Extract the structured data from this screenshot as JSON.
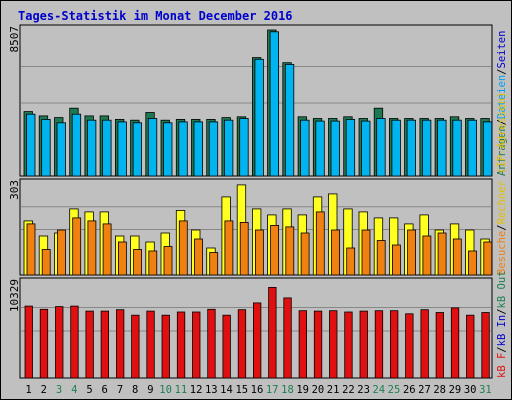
{
  "title": "Tages-Statistik im Monat December 2016",
  "colors": {
    "background": "#C0C0C0",
    "frame": "#000000",
    "title_text": "#0000CC",
    "grid": "#888888",
    "anfragen": "#1E7850",
    "dateien": "#00B4F0",
    "rechner": "#FFFF20",
    "besuche": "#F08010",
    "kbf": "#E01010",
    "weekday_label": "#000000",
    "weekend_label": "#1E8050"
  },
  "panels": {
    "top": {
      "max_label": "8507"
    },
    "mid": {
      "max_label": "303"
    },
    "bottom": {
      "max_label": "10329"
    }
  },
  "right_legend": {
    "top": [
      {
        "text": "Anfragen",
        "color": "#1E7850"
      },
      {
        "text": "/",
        "color": "#000000"
      },
      {
        "text": "Dateien",
        "color": "#00A0F0"
      },
      {
        "text": "/",
        "color": "#000000"
      },
      {
        "text": "Seiten",
        "color": "#0000CC"
      }
    ],
    "mid": [
      {
        "text": "Besuche",
        "color": "#F08010"
      },
      {
        "text": "/",
        "color": "#000000"
      },
      {
        "text": "Rechner (IP-Adressen)",
        "color": "#E0C000"
      }
    ],
    "bottom": [
      {
        "text": "kB F",
        "color": "#E01010"
      },
      {
        "text": "/",
        "color": "#000000"
      },
      {
        "text": "kB In",
        "color": "#0000CC"
      },
      {
        "text": "/",
        "color": "#000000"
      },
      {
        "text": "kB Out",
        "color": "#1E8050"
      }
    ]
  },
  "chart_data": [
    {
      "type": "bar",
      "panel": "top",
      "ylim": [
        0,
        8507
      ],
      "categories": [
        "1",
        "2",
        "3",
        "4",
        "5",
        "6",
        "7",
        "8",
        "9",
        "10",
        "11",
        "12",
        "13",
        "14",
        "15",
        "16",
        "17",
        "18",
        "19",
        "20",
        "21",
        "22",
        "23",
        "24",
        "25",
        "26",
        "27",
        "28",
        "29",
        "30",
        "31"
      ],
      "weekend_days": [
        3,
        4,
        10,
        11,
        17,
        18,
        24,
        25,
        31
      ],
      "series": [
        {
          "name": "Anfragen",
          "values": [
            3750,
            3500,
            3400,
            3950,
            3500,
            3500,
            3300,
            3250,
            3700,
            3250,
            3300,
            3300,
            3300,
            3400,
            3450,
            6900,
            8507,
            6600,
            3450,
            3350,
            3350,
            3450,
            3350,
            3950,
            3350,
            3350,
            3350,
            3350,
            3450,
            3350,
            3350
          ]
        },
        {
          "name": "Dateien",
          "values": [
            3600,
            3300,
            3100,
            3600,
            3250,
            3250,
            3150,
            3100,
            3350,
            3100,
            3150,
            3150,
            3150,
            3250,
            3350,
            6800,
            8400,
            6500,
            3250,
            3200,
            3200,
            3300,
            3200,
            3350,
            3250,
            3250,
            3250,
            3250,
            3250,
            3250,
            3150
          ]
        }
      ]
    },
    {
      "type": "bar",
      "panel": "mid",
      "ylim": [
        0,
        303
      ],
      "categories": [
        "1",
        "2",
        "3",
        "4",
        "5",
        "6",
        "7",
        "8",
        "9",
        "10",
        "11",
        "12",
        "13",
        "14",
        "15",
        "16",
        "17",
        "18",
        "19",
        "20",
        "21",
        "22",
        "23",
        "24",
        "25",
        "26",
        "27",
        "28",
        "29",
        "30",
        "31"
      ],
      "series": [
        {
          "name": "Rechner (IP-Adressen)",
          "values": [
            180,
            130,
            140,
            220,
            210,
            210,
            130,
            130,
            110,
            140,
            215,
            150,
            90,
            260,
            300,
            220,
            200,
            220,
            200,
            260,
            270,
            220,
            210,
            190,
            190,
            170,
            200,
            150,
            170,
            150,
            120
          ]
        },
        {
          "name": "Besuche",
          "values": [
            170,
            85,
            150,
            190,
            180,
            170,
            110,
            85,
            80,
            95,
            180,
            120,
            75,
            180,
            175,
            150,
            165,
            160,
            140,
            210,
            150,
            90,
            150,
            115,
            100,
            150,
            130,
            140,
            120,
            80,
            110
          ]
        }
      ]
    },
    {
      "type": "bar",
      "panel": "bottom",
      "ylim": [
        0,
        10329
      ],
      "categories": [
        "1",
        "2",
        "3",
        "4",
        "5",
        "6",
        "7",
        "8",
        "9",
        "10",
        "11",
        "12",
        "13",
        "14",
        "15",
        "16",
        "17",
        "18",
        "19",
        "20",
        "21",
        "22",
        "23",
        "24",
        "25",
        "26",
        "27",
        "28",
        "29",
        "30",
        "31"
      ],
      "series": [
        {
          "name": "kB F",
          "values": [
            7900,
            7550,
            7850,
            7900,
            7350,
            7350,
            7500,
            6900,
            7350,
            6900,
            7250,
            7250,
            7550,
            6900,
            7500,
            8250,
            9950,
            8800,
            7400,
            7350,
            7400,
            7250,
            7350,
            7400,
            7400,
            7050,
            7500,
            7200,
            7700,
            6900,
            7200
          ]
        }
      ]
    }
  ]
}
